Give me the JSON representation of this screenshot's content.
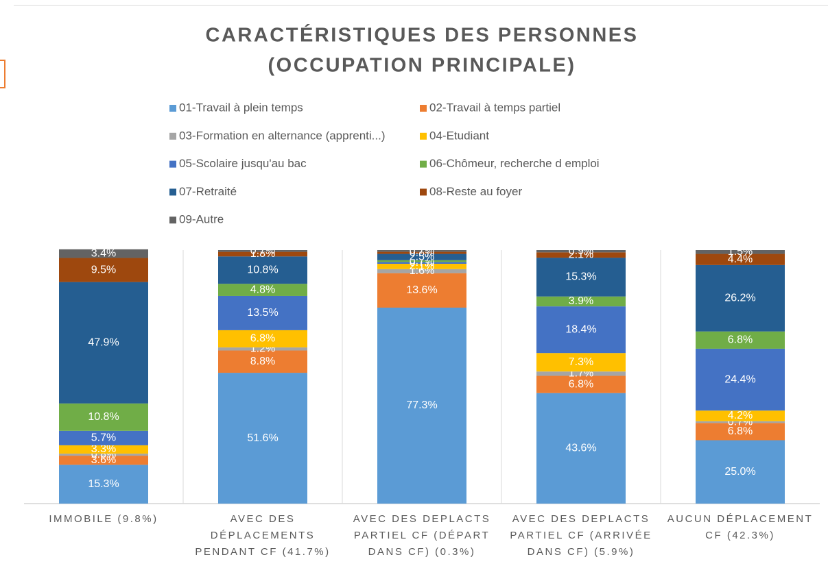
{
  "chart_data": {
    "type": "stacked_bar",
    "title": [
      "CARACTÉRISTIQUES DES PERSONNES",
      "(OCCUPATION PRINCIPALE)"
    ],
    "categories": [
      "IMMOBILE (9.8%)",
      "AVEC DES DÉPLACEMENTS PENDANT CF (41.7%)",
      "AVEC DES DEPLACTS PARTIEL CF (DÉPART DANS CF) (0.3%)",
      "AVEC DES DEPLACTS PARTIEL CF (ARRIVÉE DANS CF) (5.9%)",
      "AUCUN DÉPLACEMENT CF (42.3%)"
    ],
    "ylim": [
      0,
      100
    ],
    "series": [
      {
        "name": "01-Travail à plein temps",
        "color": "#5b9bd5",
        "values": [
          15.3,
          51.6,
          77.3,
          43.6,
          25.0
        ],
        "value_labels": [
          "15.3%",
          "51.6%",
          "77.3%",
          "43.6%",
          "25.0%"
        ]
      },
      {
        "name": "02-Travail à temps partiel",
        "color": "#ed7d31",
        "values": [
          3.6,
          8.8,
          13.6,
          6.8,
          6.8
        ],
        "value_labels": [
          "3.6%",
          "8.8%",
          "13.6%",
          "6.8%",
          "6.8%"
        ]
      },
      {
        "name": "03-Formation en alternance (apprenti...)",
        "color": "#a5a5a5",
        "values": [
          0.8,
          1.2,
          1.6,
          1.7,
          0.7
        ],
        "value_labels": [
          "0.8%",
          "1.2%",
          "1.6%",
          "1.7%",
          "0.7%"
        ]
      },
      {
        "name": "04-Etudiant",
        "color": "#ffc000",
        "values": [
          3.3,
          6.8,
          2.1,
          7.3,
          4.2
        ],
        "value_labels": [
          "3.3%",
          "6.8%",
          "2.1%",
          "7.3%",
          "4.2%"
        ]
      },
      {
        "name": "05-Scolaire jusqu'au bac",
        "color": "#4472c4",
        "values": [
          5.7,
          13.5,
          0.7,
          18.4,
          24.4
        ],
        "value_labels": [
          "5.7%",
          "13.5%",
          "0.7%",
          "18.4%",
          "24.4%"
        ]
      },
      {
        "name": "06-Chômeur, recherche d emploi",
        "color": "#70ad47",
        "values": [
          10.8,
          4.8,
          0.7,
          3.9,
          6.8
        ],
        "value_labels": [
          "10.8%",
          "4.8%",
          "0.7%",
          "3.9%",
          "6.8%"
        ]
      },
      {
        "name": "07-Retraité",
        "color": "#255e91",
        "values": [
          47.9,
          10.8,
          2.5,
          15.3,
          26.2
        ],
        "value_labels": [
          "47.9%",
          "10.8%",
          "2.5%",
          "15.3%",
          "26.2%"
        ]
      },
      {
        "name": "08-Reste au foyer",
        "color": "#9e480e",
        "values": [
          9.5,
          1.8,
          0.8,
          2.1,
          4.4
        ],
        "value_labels": [
          "9.5%",
          "1.8%",
          "0.8%",
          "2.1%",
          "4.4%"
        ]
      },
      {
        "name": "09-Autre",
        "color": "#636363",
        "values": [
          3.4,
          0.7,
          0.7,
          0.9,
          1.5
        ],
        "value_labels": [
          "3.4%",
          "0.7%",
          "0.7%",
          "0.9%",
          "1.5%"
        ]
      }
    ]
  }
}
